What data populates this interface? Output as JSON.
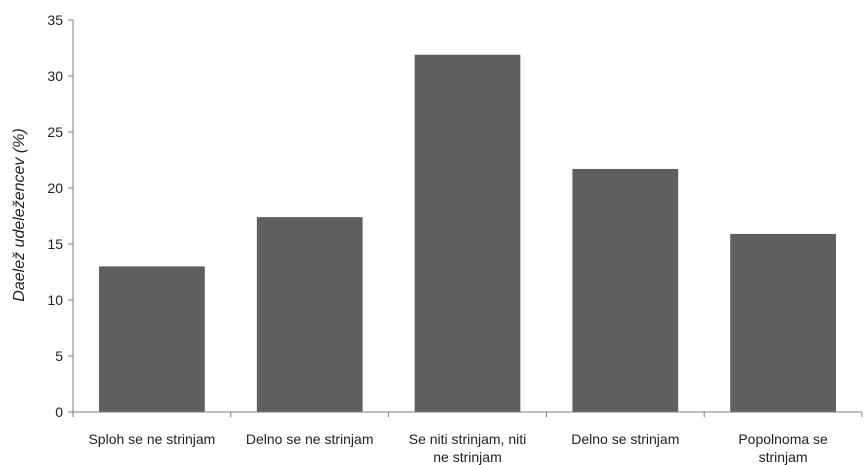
{
  "chart_data": {
    "type": "bar",
    "title": "",
    "xlabel": "",
    "ylabel": "Daelež udeležencev (%)",
    "ylim": [
      0,
      35
    ],
    "yticks": [
      0,
      5,
      10,
      15,
      20,
      25,
      30,
      35
    ],
    "grid": false,
    "categories": [
      [
        "Sploh se ne strinjam"
      ],
      [
        "Delno se ne strinjam"
      ],
      [
        "Se niti strinjam, niti",
        "ne strinjam"
      ],
      [
        "Delno se strinjam"
      ],
      [
        "Popolnoma se",
        "strinjam"
      ]
    ],
    "values": [
      13.0,
      17.4,
      31.9,
      21.7,
      15.9
    ],
    "bar_color": "#5f5f5f",
    "axis_color": "#7f7f7f"
  }
}
